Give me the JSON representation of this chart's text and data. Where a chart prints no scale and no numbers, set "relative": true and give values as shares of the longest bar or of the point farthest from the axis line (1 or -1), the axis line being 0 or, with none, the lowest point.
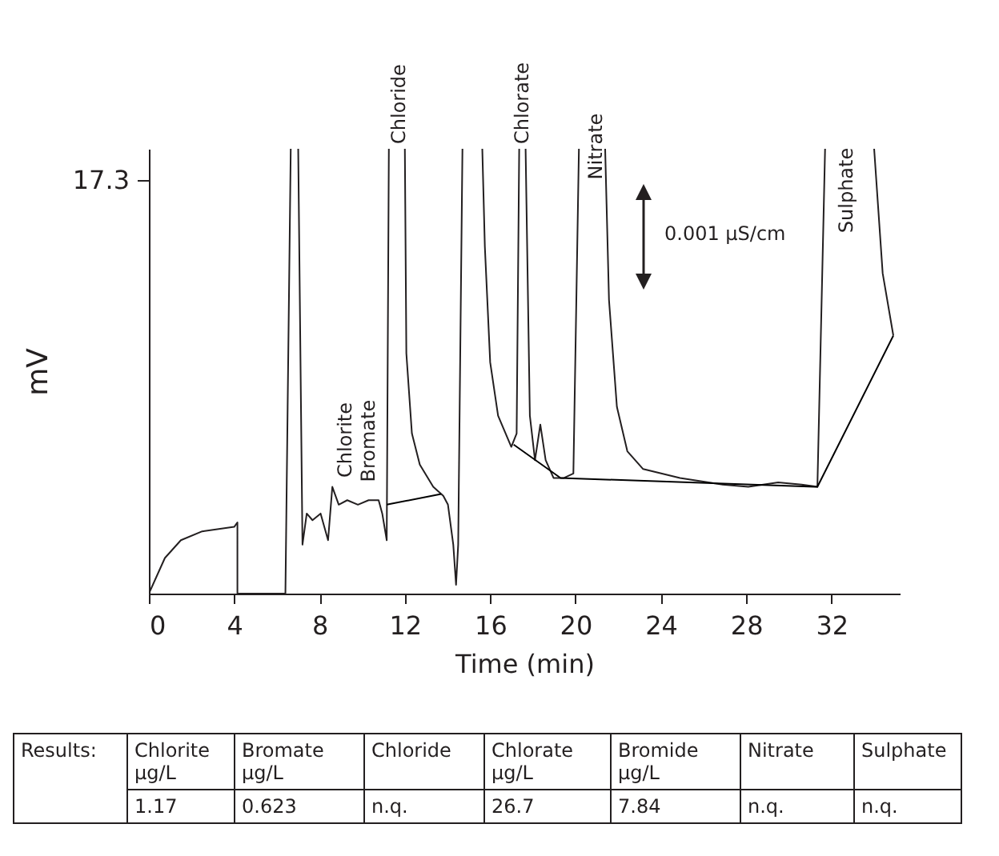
{
  "chart_data": {
    "type": "line",
    "relative": true,
    "xlabel": "Time (min)",
    "ylabel": "mV",
    "xlim": [
      0,
      35.2
    ],
    "xticks": [
      0,
      4,
      8,
      12,
      16,
      20,
      24,
      28,
      32
    ],
    "series": [
      {
        "color": "#231f20",
        "x": [
          0,
          0.75,
          1.5,
          2.5,
          4.0,
          4.15,
          4.15,
          6.4,
          6.65,
          6.8,
          7.0,
          7.2,
          7.4,
          7.67,
          8.05,
          8.4,
          8.6,
          8.9,
          9.3,
          9.8,
          10.3,
          10.77,
          10.94,
          11.15,
          11.25,
          11.6,
          12.0,
          12.07,
          12.33,
          12.7,
          13.33,
          13.8,
          14.02,
          14.27,
          14.4,
          14.5,
          14.7,
          15.2,
          15.63,
          15.75,
          16.0,
          16.37,
          16.99,
          17.24,
          17.36,
          17.5,
          17.66,
          17.86,
          18.1,
          18.35,
          18.6,
          18.97,
          19.46,
          19.9,
          20.16,
          20.8,
          21.39,
          21.57,
          21.94,
          22.43,
          23.17,
          24.9,
          26.9,
          28.1,
          29.5,
          30.6,
          31.34,
          31.7,
          33.0,
          34.0,
          34.4,
          34.9
        ],
        "values": [
          0,
          0.08,
          0.12,
          0.14,
          0.15,
          0.16,
          0,
          0,
          1,
          null,
          1,
          0.11,
          0.18,
          0.165,
          0.18,
          0.12,
          0.24,
          0.2,
          0.21,
          0.2,
          0.21,
          0.21,
          0.18,
          0.12,
          1,
          null,
          1,
          0.54,
          0.36,
          0.29,
          0.24,
          0.22,
          0.2,
          0.11,
          0.02,
          0.11,
          1,
          null,
          1,
          0.78,
          0.52,
          0.4,
          0.33,
          0.36,
          1,
          null,
          1,
          0.4,
          0.3,
          0.38,
          0.3,
          0.26,
          0.26,
          0.27,
          1,
          null,
          1,
          0.66,
          0.42,
          0.32,
          0.28,
          0.26,
          0.245,
          0.24,
          0.25,
          0.245,
          0.24,
          1,
          null,
          1,
          0.72,
          0.58
        ]
      },
      {
        "color": "#000000",
        "x": [
          11.15,
          13.7,
          15.0,
          17.1,
          19.3,
          31.34,
          34.9
        ],
        "values": [
          0.2,
          0.224,
          null,
          0.335,
          0.26,
          0.24,
          0.58
        ]
      }
    ],
    "annotations": [
      "17.3",
      "0.001 µS/cm",
      "Results:",
      "Chlorite µg/L",
      "Bromate µg/L",
      "Chloride",
      "Chlorate µg/L",
      "Bromide µg/L",
      "Nitrate",
      "Sulphate",
      "1.17",
      "0.623",
      "n.q.",
      "26.7",
      "7.84",
      "n.q.",
      "n.q.",
      "Chlorite",
      "Bromate",
      "Nitrate",
      "Sulphate",
      {
        "text": "Chloride",
        "x": 11.7,
        "y": 1
      },
      {
        "text": "Chlorate",
        "x": 17.5,
        "y": 1
      }
    ]
  }
}
